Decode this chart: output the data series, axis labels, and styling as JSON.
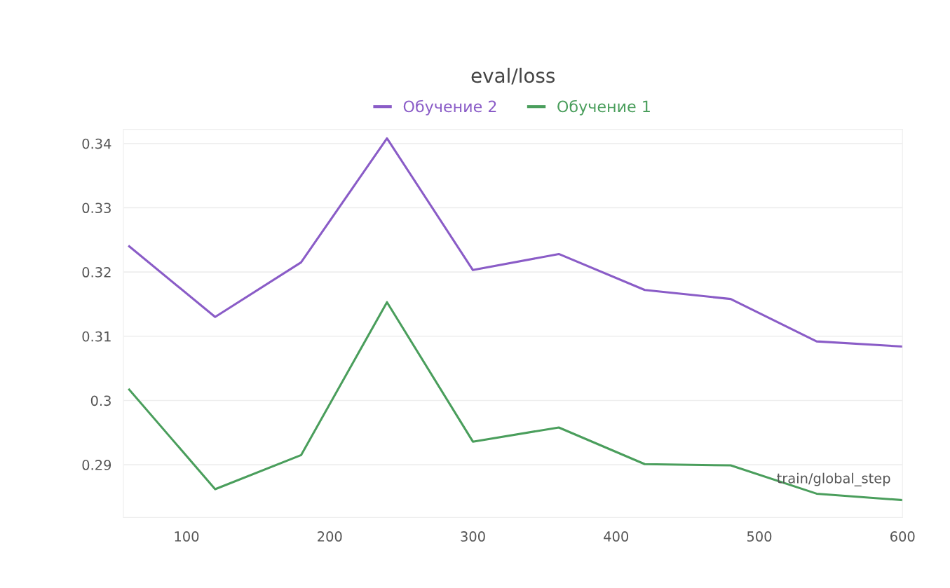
{
  "chart_data": {
    "type": "line",
    "title": "eval/loss",
    "xlabel": "train/global_step",
    "x": [
      60,
      120,
      180,
      240,
      300,
      360,
      420,
      480,
      540,
      600
    ],
    "series": [
      {
        "name": "Обучение 2",
        "color": "#8a5cc7",
        "values": [
          0.324,
          0.313,
          0.3215,
          0.3408,
          0.3203,
          0.3228,
          0.3172,
          0.3158,
          0.3092,
          0.3084
        ]
      },
      {
        "name": "Обучение 1",
        "color": "#4a9e5c",
        "values": [
          0.3017,
          0.2862,
          0.2915,
          0.3153,
          0.2936,
          0.2958,
          0.2901,
          0.2899,
          0.2855,
          0.2845
        ]
      }
    ],
    "xlim": [
      56,
      600
    ],
    "ylim": [
      0.2818,
      0.3422
    ],
    "xticks": [
      100,
      200,
      300,
      400,
      500,
      600
    ],
    "yticks": [
      0.29,
      {
        "value": 0.3,
        "label": "0.3"
      },
      0.31,
      0.32,
      0.33,
      0.34
    ],
    "grid": "y",
    "legend": "top",
    "line_style": "solid"
  }
}
